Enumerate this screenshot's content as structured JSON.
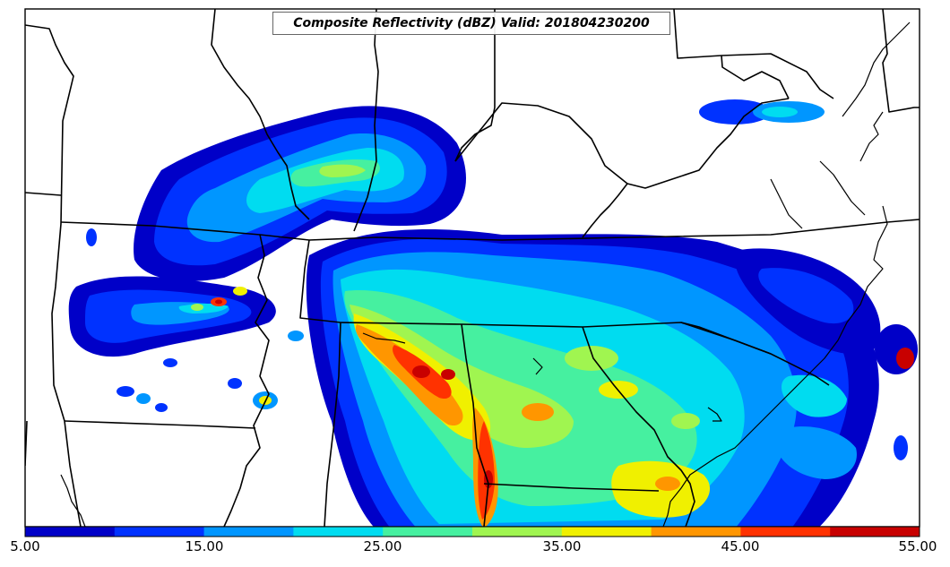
{
  "title": "Composite Reflectivity (dBZ) Valid: 201804230200",
  "colorbar": {
    "colors": [
      "#0000c8",
      "#0032ff",
      "#0096ff",
      "#00dcf0",
      "#46f0a0",
      "#a0f550",
      "#f0f000",
      "#ff9600",
      "#ff3200",
      "#c80000"
    ],
    "tick_labels": [
      "5.00",
      "15.00",
      "25.00",
      "35.00",
      "45.00",
      "55.00"
    ],
    "min": 5,
    "max": 55
  },
  "line_color": "#000000"
}
